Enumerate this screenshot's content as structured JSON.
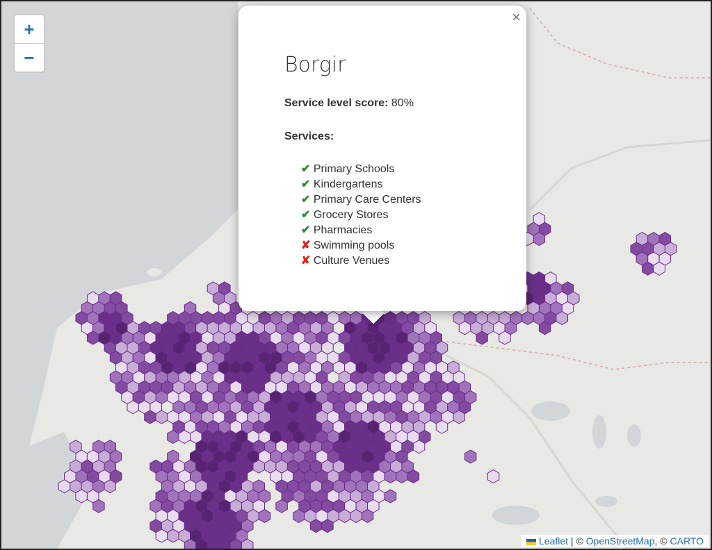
{
  "map": {
    "zoom_in": "+",
    "zoom_out": "−",
    "hex_colors": [
      "#4a1268",
      "#5e1f80",
      "#7a3d9a",
      "#9a68b6",
      "#c4a7d6",
      "#e7daef"
    ]
  },
  "popup": {
    "close": "×",
    "title": "Borgir",
    "score_label": "Service level score:",
    "score_value": "80%",
    "services_heading": "Services:",
    "services": [
      {
        "name": "Primary Schools",
        "available": true
      },
      {
        "name": "Kindergartens",
        "available": true
      },
      {
        "name": "Primary Care Centers",
        "available": true
      },
      {
        "name": "Grocery Stores",
        "available": true
      },
      {
        "name": "Pharmacies",
        "available": true
      },
      {
        "name": "Swimming pools",
        "available": false
      },
      {
        "name": "Culture Venues",
        "available": false
      }
    ]
  },
  "attribution": {
    "leaflet": "Leaflet",
    "sep": " | © ",
    "osm": "OpenStreetMap",
    "sep2": ", © ",
    "carto": "CARTO"
  }
}
